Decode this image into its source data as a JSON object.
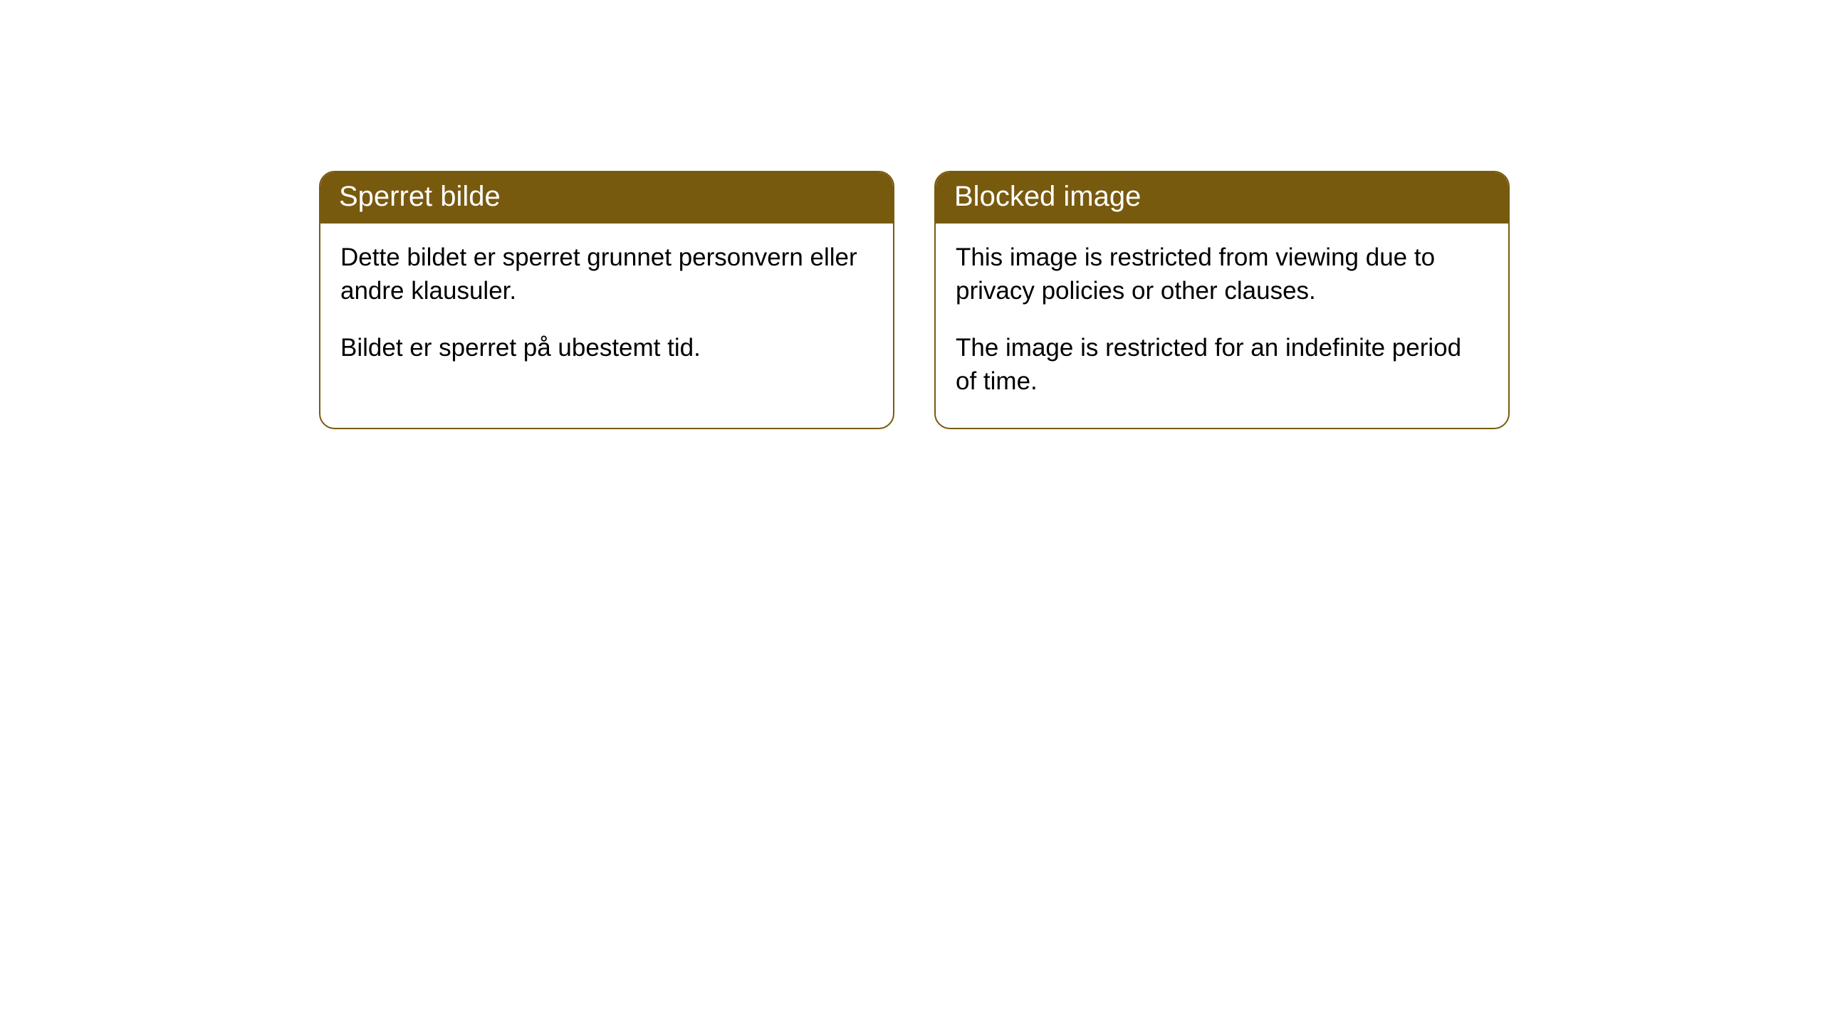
{
  "cards": [
    {
      "title": "Sperret bilde",
      "paragraph1": "Dette bildet er sperret grunnet personvern eller andre klausuler.",
      "paragraph2": "Bildet er sperret på ubestemt tid."
    },
    {
      "title": "Blocked image",
      "paragraph1": "This image is restricted from viewing due to privacy policies or other clauses.",
      "paragraph2": "The image is restricted for an indefinite period of time."
    }
  ],
  "styling": {
    "header_bg_color": "#785a0f",
    "header_text_color": "#ffffff",
    "body_text_color": "#000000",
    "border_color": "#785a0f",
    "background_color": "#ffffff",
    "border_radius": 22,
    "header_fontsize": 40,
    "body_fontsize": 35
  }
}
